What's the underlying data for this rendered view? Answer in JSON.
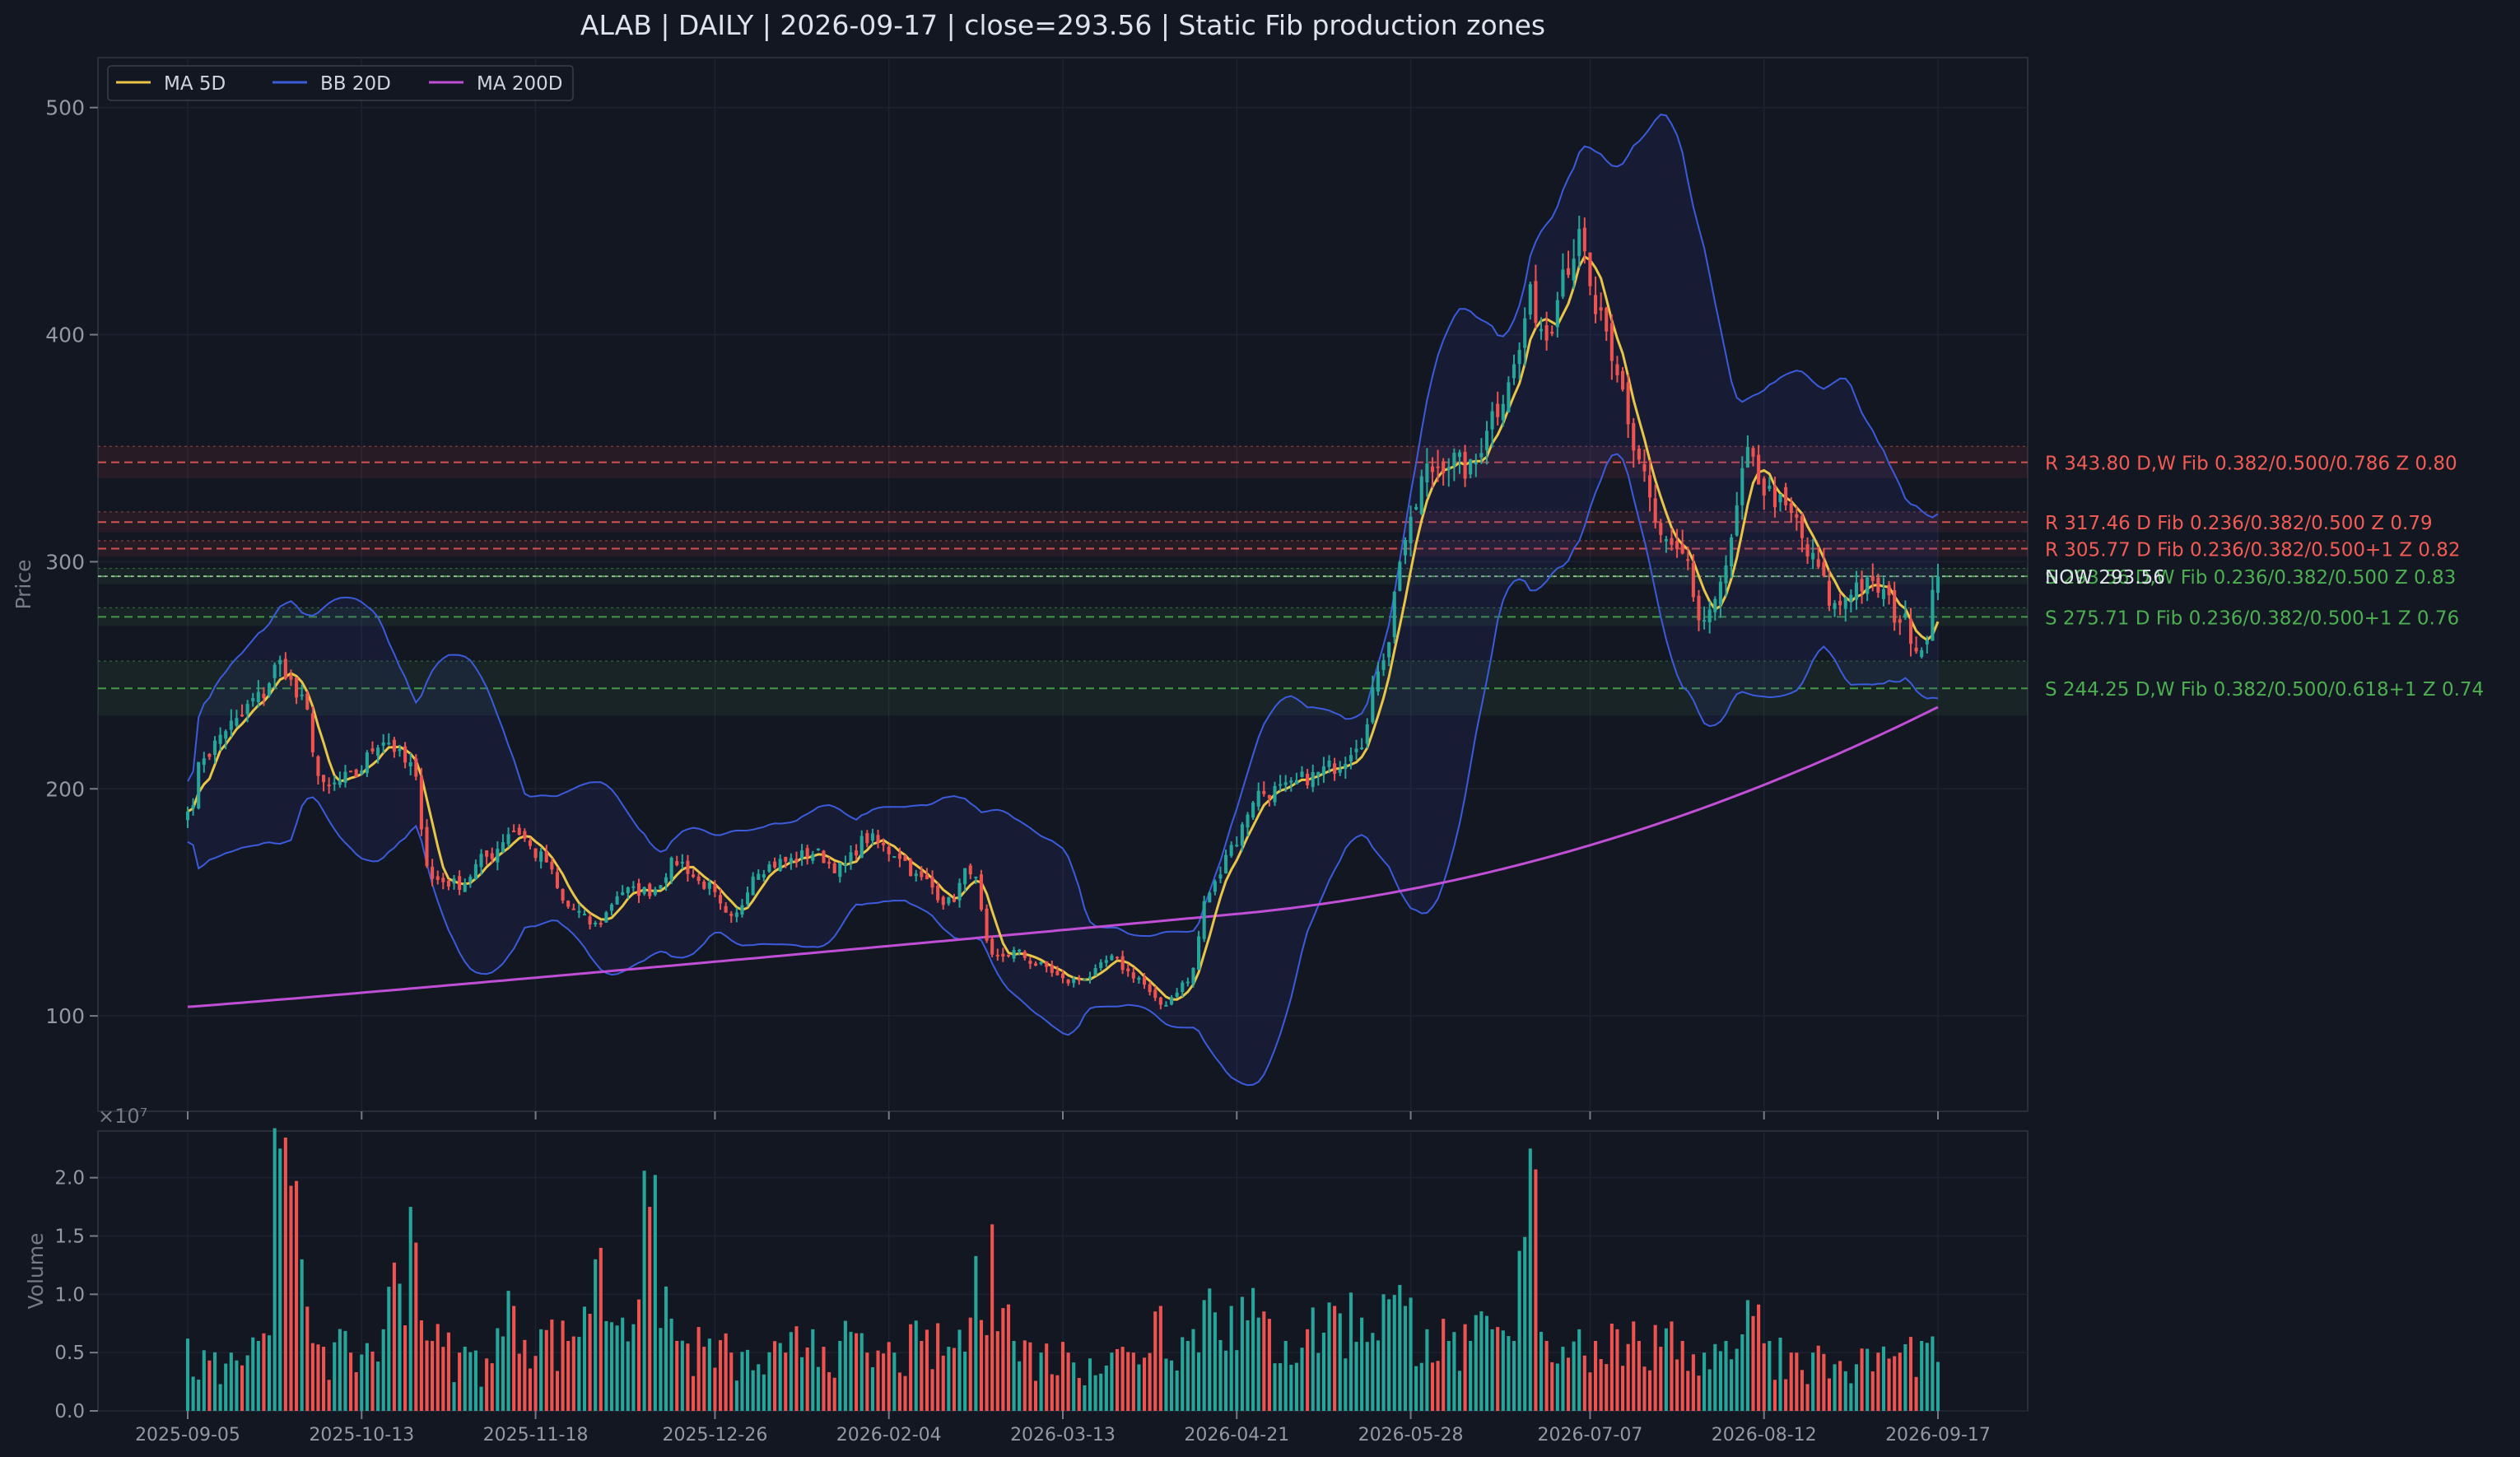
{
  "chart_data": {
    "type": "candlestick",
    "title": "ALAB  |  DAILY  |  2026-09-17  |  close=293.56  |  Static Fib production zones",
    "symbol": "ALAB",
    "timeframe": "DAILY",
    "date": "2026-09-17",
    "close": 293.56,
    "ylabel": "Price",
    "volume_ylabel": "Volume",
    "volume_exponent_label": "×10⁷",
    "ylim": [
      58,
      522
    ],
    "volume_ylim": [
      0,
      2.4
    ],
    "y_ticks": [
      100,
      200,
      300,
      400,
      500
    ],
    "volume_ticks": [
      "0.0",
      "0.5",
      "1.0",
      "1.5",
      "2.0"
    ],
    "x_tick_labels": [
      "2025-09-05",
      "2025-10-13",
      "2025-11-18",
      "2025-12-26",
      "2026-02-04",
      "2026-03-13",
      "2026-04-21",
      "2026-05-28",
      "2026-07-07",
      "2026-08-12",
      "2026-09-17"
    ],
    "legend": {
      "position": "top-left",
      "entries": [
        {
          "label": "MA 5D",
          "color": "#e8c547"
        },
        {
          "label": "BB 20D",
          "color": "#3b5bdb"
        },
        {
          "label": "MA 200D",
          "color": "#c04fd6"
        }
      ]
    },
    "colors": {
      "up": "#26a69a",
      "down": "#ef5350",
      "resistance": "#f25c54",
      "support": "#4caf50",
      "background": "#131722"
    },
    "anchors": [
      {
        "i": 0,
        "c": 190,
        "v": 0.62
      },
      {
        "i": 3,
        "c": 215,
        "v": 0.52
      },
      {
        "i": 8,
        "c": 228,
        "v": 0.5
      },
      {
        "i": 13,
        "c": 240,
        "v": 0.6
      },
      {
        "i": 17,
        "c": 255,
        "v": 2.25
      },
      {
        "i": 21,
        "c": 238,
        "v": 1.3
      },
      {
        "i": 25,
        "c": 200,
        "v": 0.55
      },
      {
        "i": 30,
        "c": 205,
        "v": 0.5
      },
      {
        "i": 36,
        "c": 222,
        "v": 0.7
      },
      {
        "i": 41,
        "c": 210,
        "v": 1.75
      },
      {
        "i": 45,
        "c": 160,
        "v": 0.6
      },
      {
        "i": 50,
        "c": 158,
        "v": 0.5
      },
      {
        "i": 55,
        "c": 170,
        "v": 0.45
      },
      {
        "i": 60,
        "c": 182,
        "v": 0.9
      },
      {
        "i": 65,
        "c": 170,
        "v": 0.7
      },
      {
        "i": 70,
        "c": 148,
        "v": 0.6
      },
      {
        "i": 75,
        "c": 140,
        "v": 1.3
      },
      {
        "i": 80,
        "c": 155,
        "v": 0.8
      },
      {
        "i": 85,
        "c": 155,
        "v": 1.75
      },
      {
        "i": 90,
        "c": 168,
        "v": 0.6
      },
      {
        "i": 95,
        "c": 158,
        "v": 0.55
      },
      {
        "i": 100,
        "c": 142,
        "v": 0.5
      },
      {
        "i": 105,
        "c": 165,
        "v": 0.4
      },
      {
        "i": 110,
        "c": 168,
        "v": 0.5
      },
      {
        "i": 115,
        "c": 172,
        "v": 0.7
      },
      {
        "i": 120,
        "c": 165,
        "v": 0.6
      },
      {
        "i": 125,
        "c": 178,
        "v": 0.5
      },
      {
        "i": 130,
        "c": 172,
        "v": 0.5
      },
      {
        "i": 135,
        "c": 160,
        "v": 0.6
      },
      {
        "i": 140,
        "c": 150,
        "v": 0.55
      },
      {
        "i": 144,
        "c": 165,
        "v": 0.8
      },
      {
        "i": 148,
        "c": 125,
        "v": 1.6
      },
      {
        "i": 152,
        "c": 128,
        "v": 0.6
      },
      {
        "i": 157,
        "c": 122,
        "v": 0.5
      },
      {
        "i": 162,
        "c": 115,
        "v": 0.5
      },
      {
        "i": 166,
        "c": 118,
        "v": 0.45
      },
      {
        "i": 170,
        "c": 125,
        "v": 0.5
      },
      {
        "i": 174,
        "c": 118,
        "v": 0.5
      },
      {
        "i": 179,
        "c": 105,
        "v": 0.9
      },
      {
        "i": 184,
        "c": 115,
        "v": 0.6
      },
      {
        "i": 188,
        "c": 155,
        "v": 1.05
      },
      {
        "i": 192,
        "c": 175,
        "v": 0.9
      },
      {
        "i": 197,
        "c": 198,
        "v": 0.8
      },
      {
        "i": 202,
        "c": 200,
        "v": 0.6
      },
      {
        "i": 206,
        "c": 205,
        "v": 0.7
      },
      {
        "i": 211,
        "c": 210,
        "v": 0.9
      },
      {
        "i": 216,
        "c": 222,
        "v": 0.8
      },
      {
        "i": 220,
        "c": 260,
        "v": 1.0
      },
      {
        "i": 224,
        "c": 310,
        "v": 0.9
      },
      {
        "i": 228,
        "c": 340,
        "v": 0.7
      },
      {
        "i": 232,
        "c": 345,
        "v": 0.6
      },
      {
        "i": 236,
        "c": 340,
        "v": 0.6
      },
      {
        "i": 240,
        "c": 365,
        "v": 0.7
      },
      {
        "i": 244,
        "c": 385,
        "v": 0.6
      },
      {
        "i": 247,
        "c": 415,
        "v": 2.25
      },
      {
        "i": 250,
        "c": 400,
        "v": 0.6
      },
      {
        "i": 253,
        "c": 430,
        "v": 0.55
      },
      {
        "i": 256,
        "c": 440,
        "v": 0.7
      },
      {
        "i": 259,
        "c": 410,
        "v": 0.6
      },
      {
        "i": 263,
        "c": 380,
        "v": 0.7
      },
      {
        "i": 267,
        "c": 345,
        "v": 0.6
      },
      {
        "i": 271,
        "c": 310,
        "v": 0.55
      },
      {
        "i": 275,
        "c": 300,
        "v": 0.6
      },
      {
        "i": 279,
        "c": 270,
        "v": 0.5
      },
      {
        "i": 283,
        "c": 300,
        "v": 0.6
      },
      {
        "i": 287,
        "c": 345,
        "v": 0.95
      },
      {
        "i": 291,
        "c": 330,
        "v": 0.6
      },
      {
        "i": 295,
        "c": 320,
        "v": 0.5
      },
      {
        "i": 299,
        "c": 300,
        "v": 0.5
      },
      {
        "i": 303,
        "c": 280,
        "v": 0.4
      },
      {
        "i": 307,
        "c": 290,
        "v": 0.4
      },
      {
        "i": 311,
        "c": 288,
        "v": 0.5
      },
      {
        "i": 315,
        "c": 275,
        "v": 0.5
      },
      {
        "i": 319,
        "c": 262,
        "v": 0.6
      },
      {
        "i": 322,
        "c": 293.56,
        "v": 0.42
      }
    ],
    "zones": [
      {
        "type": "R",
        "price": 343.8,
        "half": 7,
        "label": "R 343.80  D,W  Fib 0.382/0.500/0.786  Z 0.80"
      },
      {
        "type": "R",
        "price": 317.46,
        "half": 4.5,
        "label": "R 317.46  D  Fib 0.236/0.382/0.500  Z 0.79"
      },
      {
        "type": "R",
        "price": 305.77,
        "half": 3.5,
        "label": "R 305.77  D  Fib 0.236/0.382/0.500+1  Z 0.82"
      },
      {
        "type": "S",
        "price": 293.56,
        "half": 3.5,
        "label": "S 293.56  D,W  Fib 0.236/0.382/0.500  Z 0.83"
      },
      {
        "type": "S",
        "price": 275.71,
        "half": 4,
        "label": "S 275.71  D  Fib 0.236/0.382/0.500+1  Z 0.76"
      },
      {
        "type": "S",
        "price": 244.25,
        "half": 12,
        "label": "S 244.25  D,W  Fib 0.382/0.500/0.618+1  Z 0.74"
      }
    ],
    "now_label": "NOW 293.56",
    "grid": true
  }
}
